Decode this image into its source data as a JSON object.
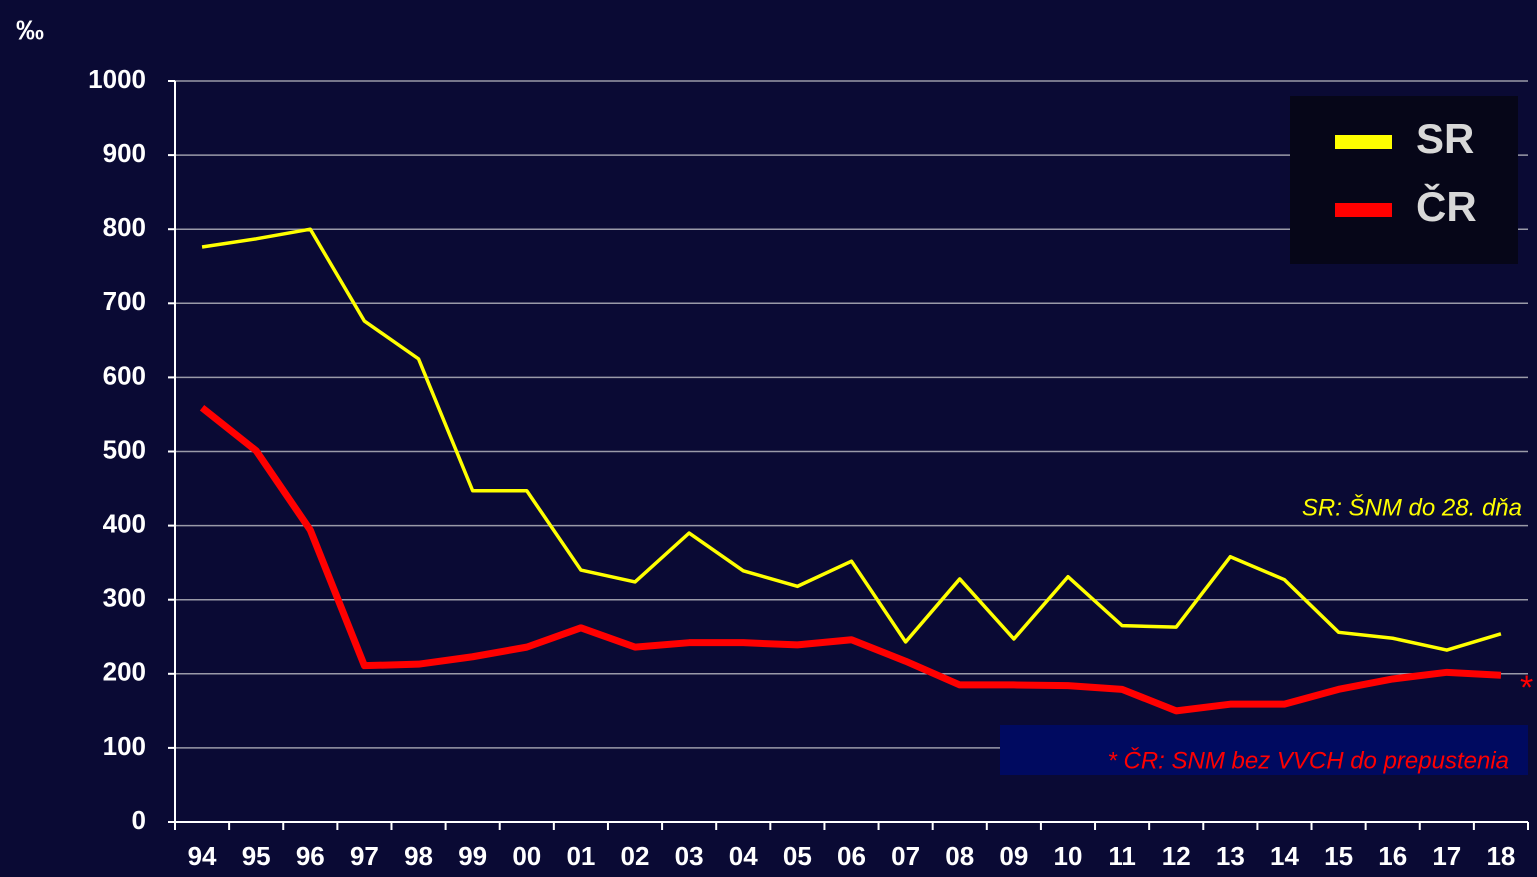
{
  "chart_data": {
    "type": "line",
    "y_unit": "‰",
    "categories": [
      "94",
      "95",
      "96",
      "97",
      "98",
      "99",
      "00",
      "01",
      "02",
      "03",
      "04",
      "05",
      "06",
      "07",
      "08",
      "09",
      "10",
      "11",
      "12",
      "13",
      "14",
      "15",
      "16",
      "17",
      "18"
    ],
    "series": [
      {
        "name": "SR",
        "color": "#ffff00",
        "values": [
          776,
          787,
          800,
          676,
          625,
          447,
          447,
          340,
          324,
          390,
          339,
          318,
          352,
          243,
          328,
          247,
          331,
          265,
          263,
          358,
          327,
          256,
          248,
          232,
          254
        ]
      },
      {
        "name": "ČR",
        "color": "#ff0000",
        "values": [
          559,
          501,
          394,
          211,
          213,
          223,
          236,
          262,
          236,
          242,
          242,
          239,
          246,
          217,
          185,
          185,
          184,
          179,
          150,
          159,
          159,
          179,
          193,
          202,
          198
        ]
      }
    ],
    "ylim": [
      0,
      1000
    ],
    "yticks": [
      0,
      100,
      200,
      300,
      400,
      500,
      600,
      700,
      800,
      900,
      1000
    ],
    "grid": true,
    "legend": "top-right",
    "annotations": [
      "SR: ŠNM  do 28. dňa",
      "* ČR: SNM bez VVCH do prepustenia",
      "*"
    ]
  }
}
